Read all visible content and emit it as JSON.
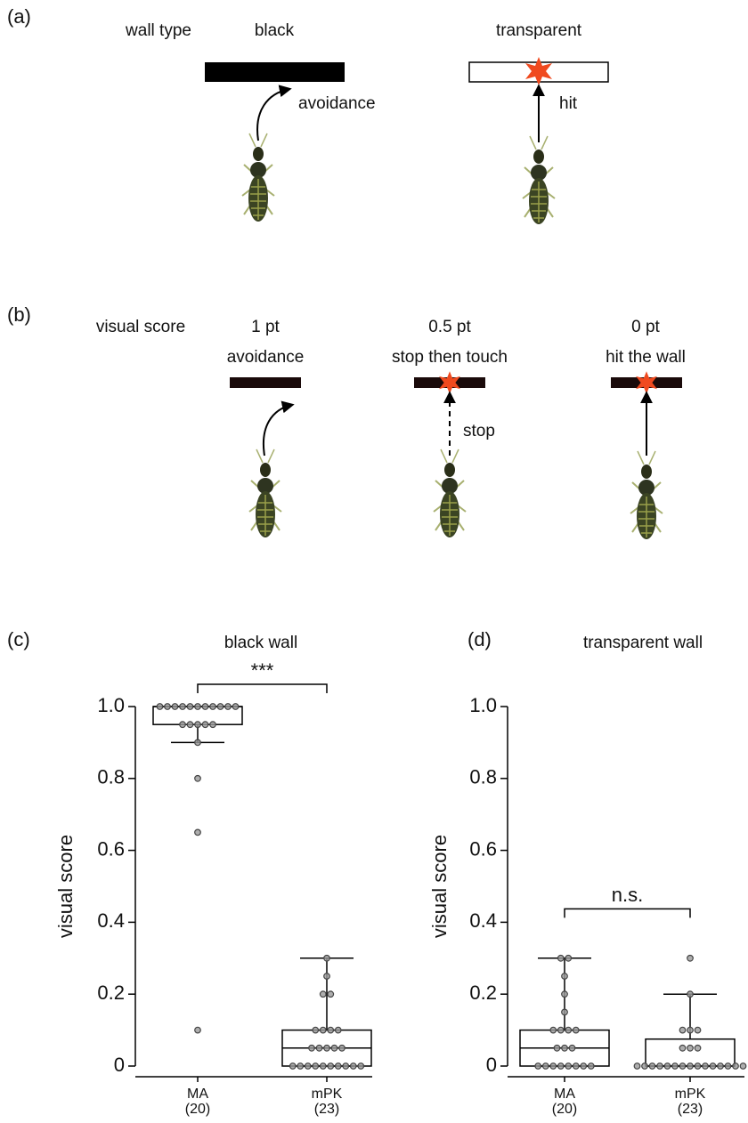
{
  "panel_a": {
    "label": "(a)",
    "row_label": "wall type",
    "columns": [
      {
        "title": "black",
        "action": "avoidance"
      },
      {
        "title": "transparent",
        "action": "hit"
      }
    ]
  },
  "panel_b": {
    "label": "(b)",
    "row_label": "visual score",
    "columns": [
      {
        "score": "1 pt",
        "action": "avoidance"
      },
      {
        "score": "0.5 pt",
        "action": "stop then touch",
        "note": "stop"
      },
      {
        "score": "0 pt",
        "action": "hit the wall"
      }
    ]
  },
  "chart_data": [
    {
      "type": "box",
      "panel_label": "(c)",
      "title": "black wall",
      "y_label": "visual score",
      "annotation": "***",
      "categories": [
        "MA",
        "mPK"
      ],
      "category_notes": [
        "(20)",
        "(23)"
      ],
      "boxes": [
        {
          "whislo": 0.9,
          "q1": 0.95,
          "med": 1.0,
          "q3": 1.0,
          "whishi": 1.0
        },
        {
          "whislo": 0,
          "q1": 0,
          "med": 0.05,
          "q3": 0.1,
          "whishi": 0.3
        }
      ],
      "points": [
        [
          1,
          1,
          1,
          1,
          1,
          1,
          1,
          1,
          1,
          1,
          1,
          0.95,
          0.95,
          0.95,
          0.95,
          0.95,
          0.9,
          0.8,
          0.65,
          0.1
        ],
        [
          0.3,
          0.25,
          0.2,
          0.2,
          0.1,
          0.1,
          0.1,
          0.1,
          0.05,
          0.05,
          0.05,
          0.05,
          0.05,
          0,
          0,
          0,
          0,
          0,
          0,
          0,
          0,
          0,
          0
        ]
      ],
      "ylim": [
        0,
        1
      ],
      "yticks": [
        0,
        0.2,
        0.4,
        0.6,
        0.8,
        {
          "value": 1,
          "label": "1.0"
        }
      ]
    },
    {
      "type": "box",
      "panel_label": "(d)",
      "title": "transparent wall",
      "y_label": "visual score",
      "annotation": "n.s.",
      "categories": [
        "MA",
        "mPK"
      ],
      "category_notes": [
        "(20)",
        "(23)"
      ],
      "boxes": [
        {
          "whislo": 0,
          "q1": 0,
          "med": 0.05,
          "q3": 0.1,
          "whishi": 0.3
        },
        {
          "whislo": 0,
          "q1": 0,
          "med": 0,
          "q3": 0.075,
          "whishi": 0.2
        }
      ],
      "points": [
        [
          0.3,
          0.3,
          0.25,
          0.2,
          0.15,
          0.1,
          0.1,
          0.1,
          0.1,
          0.05,
          0.05,
          0.05,
          0,
          0,
          0,
          0,
          0,
          0,
          0,
          0
        ],
        [
          0.3,
          0.2,
          0.1,
          0.1,
          0.1,
          0.05,
          0.05,
          0.05,
          0,
          0,
          0,
          0,
          0,
          0,
          0,
          0,
          0,
          0,
          0,
          0,
          0,
          0,
          0
        ]
      ],
      "ylim": [
        0,
        1
      ],
      "yticks": [
        0,
        0.2,
        0.4,
        0.6,
        0.8,
        {
          "value": 1,
          "label": "1.0"
        }
      ]
    }
  ]
}
